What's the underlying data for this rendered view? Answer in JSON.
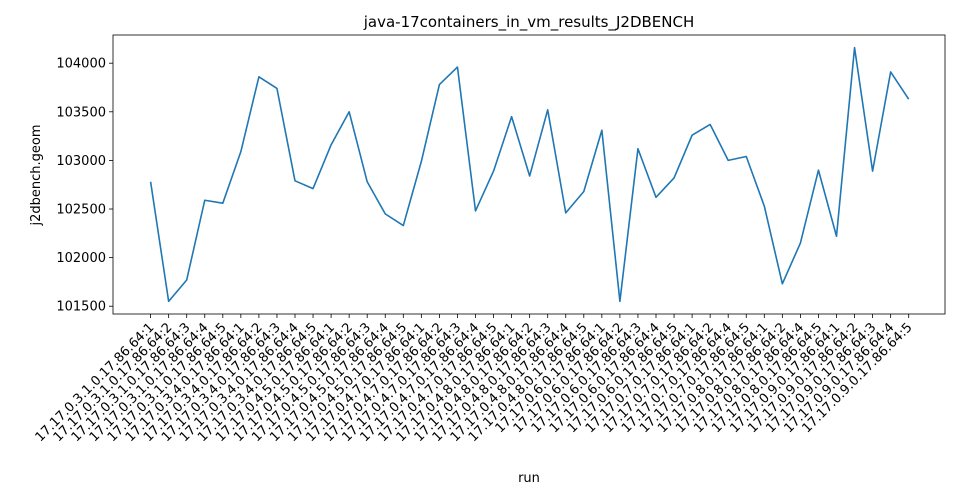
{
  "chart_data": {
    "type": "line",
    "title": "java-17containers_in_vm_results_J2DBENCH",
    "xlabel": "run",
    "ylabel": "j2dbench.geom",
    "ylim": [
      101420,
      104290
    ],
    "yticks": [
      101500,
      102000,
      102500,
      103000,
      103500,
      104000
    ],
    "grid": false,
    "series_color": "#1f77b4",
    "categories": [
      "17.17.0.3.1.0.17.86.64:1",
      "17.17.0.3.1.0.17.86.64:2",
      "17.17.0.3.1.0.17.86.64:3",
      "17.17.0.3.1.0.17.86.64:4",
      "17.17.0.3.1.0.17.86.64:5",
      "17.17.0.3.4.0.17.86.64:1",
      "17.17.0.3.4.0.17.86.64:2",
      "17.17.0.3.4.0.17.86.64:3",
      "17.17.0.3.4.0.17.86.64:4",
      "17.17.0.3.4.0.17.86.64:5",
      "17.17.0.4.5.0.17.86.64:1",
      "17.17.0.4.5.0.17.86.64:2",
      "17.17.0.4.5.0.17.86.64:3",
      "17.17.0.4.5.0.17.86.64:4",
      "17.17.0.4.5.0.17.86.64:5",
      "17.17.0.4.7.0.17.86.64:1",
      "17.17.0.4.7.0.17.86.64:2",
      "17.17.0.4.7.0.17.86.64:3",
      "17.17.0.4.7.0.17.86.64:4",
      "17.17.0.4.7.0.17.86.64:5",
      "17.17.0.4.8.0.17.86.64:1",
      "17.17.0.4.8.0.17.86.64:2",
      "17.17.0.4.8.0.17.86.64:3",
      "17.17.0.4.8.0.17.86.64:4",
      "17.17.0.4.8.0.17.86.64:5",
      "17.17.0.6.0.17.86.64:1",
      "17.17.0.6.0.17.86.64:2",
      "17.17.0.6.0.17.86.64:3",
      "17.17.0.6.0.17.86.64:4",
      "17.17.0.6.0.17.86.64:5",
      "17.17.0.7.0.17.86.64:1",
      "17.17.0.7.0.17.86.64:2",
      "17.17.0.7.0.17.86.64:4",
      "17.17.0.7.0.17.86.64:5",
      "17.17.0.8.0.17.86.64:1",
      "17.17.0.8.0.17.86.64:2",
      "17.17.0.8.0.17.86.64:4",
      "17.17.0.8.0.17.86.64:5",
      "17.17.0.9.0.17.86.64:1",
      "17.17.0.9.0.17.86.64:2",
      "17.17.0.9.0.17.86.64:3",
      "17.17.0.9.0.17.86.64:4",
      "17.17.0.9.0.17.86.64:5"
    ],
    "values": [
      102780,
      101550,
      101770,
      102590,
      102560,
      103090,
      103860,
      103740,
      102790,
      102710,
      103160,
      103500,
      102780,
      102450,
      102330,
      102990,
      103780,
      103960,
      102480,
      102890,
      103450,
      102840,
      103520,
      102460,
      102680,
      103310,
      101550,
      103120,
      102620,
      102820,
      103260,
      103370,
      103000,
      103040,
      102530,
      101730,
      102150,
      102900,
      102220,
      104160,
      102890,
      103910,
      103630
    ]
  }
}
